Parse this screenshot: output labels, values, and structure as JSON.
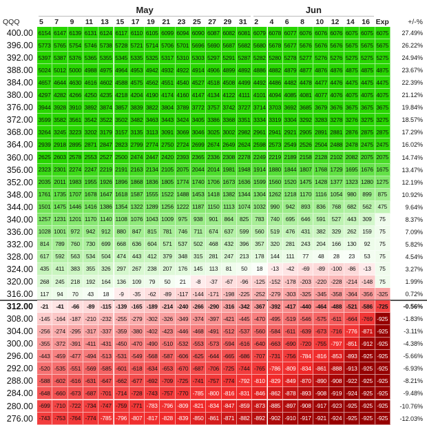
{
  "table": {
    "ticker": "QQQ",
    "column_groups": [
      {
        "label": "May",
        "columns": [
          "5",
          "7",
          "9",
          "11",
          "13",
          "15",
          "17",
          "19",
          "21",
          "23",
          "25",
          "27",
          "29",
          "31"
        ]
      },
      {
        "label": "Jun",
        "columns": [
          "2",
          "4",
          "6",
          "8",
          "10",
          "12",
          "14",
          "16"
        ]
      }
    ],
    "expiry_label": "Exp",
    "change_label": "+/-%",
    "rows": [
      {
        "price": "400.00",
        "values": [
          6154,
          6147,
          6139,
          6131,
          6124,
          6117,
          6110,
          6105,
          6099,
          6094,
          6090,
          6087,
          6082,
          6081,
          6079,
          6078,
          6077,
          6076,
          6076,
          6076,
          6075,
          6075,
          6075
        ],
        "change": "27.49%"
      },
      {
        "price": "396.00",
        "values": [
          5773,
          5765,
          5754,
          5746,
          5738,
          5728,
          5721,
          5714,
          5706,
          5701,
          5696,
          5690,
          5687,
          5682,
          5680,
          5678,
          5677,
          5676,
          5676,
          5676,
          5675,
          5675,
          5675
        ],
        "change": "26.22%"
      },
      {
        "price": "392.00",
        "values": [
          5397,
          5387,
          5376,
          5365,
          5355,
          5345,
          5335,
          5325,
          5317,
          5310,
          5303,
          5297,
          5291,
          5287,
          5282,
          5280,
          5278,
          5277,
          5276,
          5276,
          5275,
          5275,
          5275
        ],
        "change": "24.94%"
      },
      {
        "price": "388.00",
        "values": [
          5024,
          5012,
          5000,
          4988,
          4975,
          4964,
          4953,
          4942,
          4932,
          4922,
          4914,
          4906,
          4899,
          4892,
          4886,
          4882,
          4879,
          4877,
          4876,
          4876,
          4875,
          4875,
          4875
        ],
        "change": "23.67%"
      },
      {
        "price": "384.00",
        "values": [
          4657,
          4644,
          4630,
          4616,
          4602,
          4588,
          4575,
          4562,
          4551,
          4540,
          4527,
          4518,
          4508,
          4499,
          4492,
          4486,
          4482,
          4478,
          4477,
          4476,
          4475,
          4475,
          4475
        ],
        "change": "22.39%"
      },
      {
        "price": "380.00",
        "values": [
          4297,
          4282,
          4266,
          4250,
          4235,
          4218,
          4204,
          4190,
          4174,
          4160,
          4147,
          4134,
          4122,
          4111,
          4101,
          4094,
          4085,
          4081,
          4077,
          4076,
          4075,
          4075,
          4075
        ],
        "change": "21.12%"
      },
      {
        "price": "376.00",
        "values": [
          3944,
          3928,
          3910,
          3892,
          3874,
          3857,
          3839,
          3822,
          3804,
          3789,
          3772,
          3757,
          3742,
          3727,
          3714,
          3703,
          3692,
          3685,
          3679,
          3676,
          3675,
          3675,
          3675
        ],
        "change": "19.84%"
      },
      {
        "price": "372.00",
        "values": [
          3599,
          3582,
          3561,
          3542,
          3522,
          3502,
          3482,
          3463,
          3443,
          3424,
          3405,
          3386,
          3368,
          3351,
          3334,
          3319,
          3304,
          3292,
          3283,
          3278,
          3276,
          3275,
          3275
        ],
        "change": "18.57%"
      },
      {
        "price": "368.00",
        "values": [
          3264,
          3245,
          3223,
          3202,
          3179,
          3157,
          3135,
          3113,
          3091,
          3069,
          3046,
          3025,
          3002,
          2982,
          2961,
          2941,
          2921,
          2905,
          2891,
          2881,
          2876,
          2875,
          2875
        ],
        "change": "17.29%"
      },
      {
        "price": "364.00",
        "values": [
          2939,
          2918,
          2895,
          2871,
          2847,
          2823,
          2799,
          2774,
          2750,
          2724,
          2699,
          2674,
          2649,
          2624,
          2598,
          2573,
          2549,
          2526,
          2504,
          2488,
          2478,
          2475,
          2475
        ],
        "change": "16.02%"
      },
      {
        "price": "360.00",
        "values": [
          2625,
          2603,
          2578,
          2553,
          2527,
          2500,
          2474,
          2447,
          2420,
          2393,
          2365,
          2336,
          2308,
          2278,
          2249,
          2219,
          2189,
          2158,
          2128,
          2102,
          2082,
          2075,
          2075
        ],
        "change": "14.74%"
      },
      {
        "price": "356.00",
        "values": [
          2323,
          2301,
          2274,
          2247,
          2219,
          2191,
          2163,
          2134,
          2105,
          2075,
          2044,
          2014,
          1981,
          1948,
          1914,
          1880,
          1844,
          1807,
          1768,
          1729,
          1695,
          1676,
          1675
        ],
        "change": "13.47%"
      },
      {
        "price": "352.00",
        "values": [
          2035,
          2011,
          1983,
          1955,
          1926,
          1896,
          1868,
          1836,
          1805,
          1774,
          1740,
          1706,
          1673,
          1636,
          1599,
          1560,
          1520,
          1475,
          1428,
          1377,
          1323,
          1280,
          1275
        ],
        "change": "12.19%"
      },
      {
        "price": "348.00",
        "values": [
          1761,
          1735,
          1707,
          1678,
          1647,
          1618,
          1587,
          1555,
          1522,
          1488,
          1453,
          1418,
          1382,
          1344,
          1304,
          1262,
          1218,
          1170,
          1116,
          1054,
          980,
          899,
          875
        ],
        "change": "10.92%"
      },
      {
        "price": "344.00",
        "values": [
          1501,
          1475,
          1446,
          1416,
          1386,
          1354,
          1322,
          1289,
          1256,
          1222,
          1187,
          1150,
          1113,
          1074,
          1032,
          990,
          942,
          893,
          836,
          768,
          682,
          562,
          475
        ],
        "change": "9.64%"
      },
      {
        "price": "340.00",
        "values": [
          1257,
          1231,
          1201,
          1170,
          1140,
          1108,
          1076,
          1043,
          1009,
          975,
          938,
          901,
          864,
          825,
          783,
          740,
          695,
          646,
          591,
          527,
          443,
          309,
          75
        ],
        "change": "8.37%"
      },
      {
        "price": "336.00",
        "values": [
          1028,
          1001,
          972,
          942,
          912,
          880,
          847,
          815,
          781,
          746,
          711,
          674,
          637,
          599,
          560,
          519,
          476,
          431,
          382,
          329,
          262,
          159,
          75
        ],
        "change": "7.09%"
      },
      {
        "price": "332.00",
        "values": [
          814,
          789,
          760,
          730,
          699,
          668,
          636,
          604,
          571,
          537,
          502,
          468,
          432,
          396,
          357,
          320,
          281,
          243,
          204,
          166,
          130,
          92,
          75
        ],
        "change": "5.82%"
      },
      {
        "price": "328.00",
        "values": [
          617,
          592,
          563,
          534,
          504,
          474,
          443,
          412,
          379,
          348,
          315,
          281,
          247,
          213,
          178,
          144,
          111,
          77,
          48,
          28,
          23,
          53,
          75
        ],
        "change": "4.54%"
      },
      {
        "price": "324.00",
        "values": [
          435,
          411,
          383,
          355,
          326,
          297,
          267,
          238,
          207,
          176,
          145,
          113,
          81,
          50,
          18,
          -13,
          -42,
          -69,
          -89,
          -100,
          -86,
          -13,
          75
        ],
        "change": "3.27%"
      },
      {
        "price": "320.00",
        "values": [
          268,
          245,
          218,
          192,
          164,
          136,
          109,
          79,
          50,
          21,
          -8,
          -37,
          -67,
          -96,
          -125,
          -152,
          -178,
          -203,
          -220,
          -228,
          -214,
          -148,
          75
        ],
        "change": "1.99%"
      },
      {
        "price": "316.00",
        "values": [
          117,
          94,
          70,
          43,
          18,
          -9,
          -35,
          -62,
          -89,
          -117,
          -144,
          -171,
          -198,
          -225,
          -252,
          -279,
          -303,
          -325,
          -345,
          -358,
          -364,
          -356,
          -325
        ],
        "change": "0.72%"
      },
      {
        "price": "312.00",
        "values": [
          -21,
          -41,
          -66,
          -89,
          -115,
          -139,
          -165,
          -189,
          -214,
          -240,
          -266,
          -290,
          -316,
          -342,
          -367,
          -392,
          -417,
          -440,
          -464,
          -488,
          -521,
          -586,
          -725
        ],
        "change": "-0.56%"
      },
      {
        "price": "308.00",
        "values": [
          -145,
          -164,
          -187,
          -210,
          -232,
          -255,
          -279,
          -302,
          -326,
          -349,
          -374,
          -397,
          -421,
          -445,
          -470,
          -495,
          -519,
          -546,
          -575,
          -611,
          -664,
          -769,
          -925
        ],
        "change": "-1.83%"
      },
      {
        "price": "304.00",
        "values": [
          -256,
          -274,
          -295,
          -317,
          -337,
          -359,
          -380,
          -402,
          -423,
          -446,
          -468,
          -491,
          -512,
          -537,
          -560,
          -584,
          -611,
          -639,
          -673,
          -716,
          -776,
          -871,
          -925
        ],
        "change": "-3.11%"
      },
      {
        "price": "300.00",
        "values": [
          -355,
          -372,
          -391,
          -411,
          -431,
          -450,
          -470,
          -490,
          -510,
          -532,
          -553,
          -573,
          -594,
          -616,
          -640,
          -663,
          -690,
          -720,
          -755,
          -797,
          -851,
          -912,
          -925
        ],
        "change": "-4.38%"
      },
      {
        "price": "296.00",
        "values": [
          -443,
          -459,
          -477,
          -494,
          -513,
          -531,
          -549,
          -568,
          -587,
          -606,
          -625,
          -644,
          -665,
          -686,
          -707,
          -731,
          -756,
          -784,
          -816,
          -853,
          -893,
          -925,
          -925
        ],
        "change": "-5.66%"
      },
      {
        "price": "292.00",
        "values": [
          -520,
          -535,
          -551,
          -569,
          -585,
          -601,
          -618,
          -634,
          -653,
          -670,
          -687,
          -706,
          -725,
          -744,
          -765,
          -786,
          -809,
          -834,
          -861,
          -888,
          -913,
          -925,
          -925
        ],
        "change": "-6.93%"
      },
      {
        "price": "288.00",
        "values": [
          -588,
          -602,
          -616,
          -631,
          -647,
          -662,
          -677,
          -692,
          -709,
          -725,
          -741,
          -757,
          -774,
          -792,
          -810,
          -829,
          -849,
          -870,
          -890,
          -908,
          -922,
          -925,
          -925
        ],
        "change": "-8.21%"
      },
      {
        "price": "284.00",
        "values": [
          -648,
          -660,
          -673,
          -687,
          -701,
          -714,
          -728,
          -743,
          -757,
          -770,
          -785,
          -800,
          -816,
          -831,
          -846,
          -862,
          -878,
          -893,
          -908,
          -919,
          -924,
          -925,
          -925
        ],
        "change": "-9.48%"
      },
      {
        "price": "280.00",
        "values": [
          -699,
          -710,
          -722,
          -734,
          -747,
          -759,
          -771,
          -783,
          -796,
          -809,
          -821,
          -834,
          -847,
          -859,
          -873,
          -885,
          -897,
          -908,
          -917,
          -923,
          -925,
          -925,
          -925
        ],
        "change": "-10.76%"
      },
      {
        "price": "276.00",
        "values": [
          -743,
          -753,
          -764,
          -774,
          -785,
          -796,
          -807,
          -817,
          -828,
          -839,
          -850,
          -861,
          -871,
          -882,
          -892,
          -902,
          -910,
          -917,
          -921,
          -924,
          -925,
          -925,
          -925
        ],
        "change": "-12.03%"
      }
    ]
  }
}
